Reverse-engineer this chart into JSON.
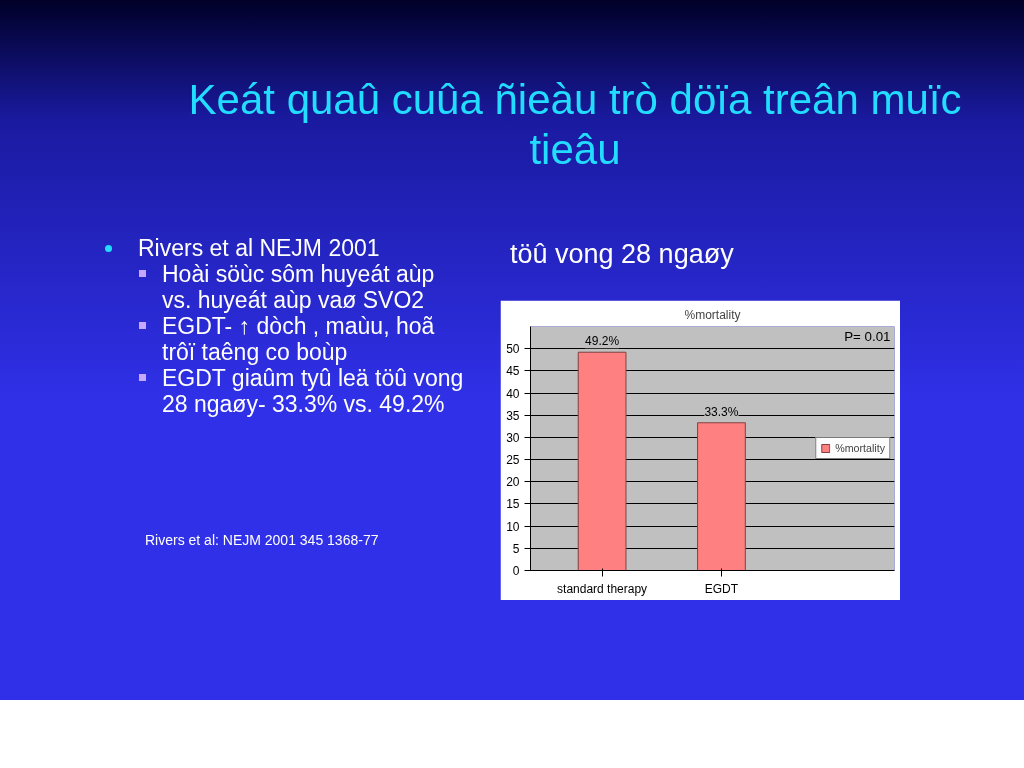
{
  "chart_data": {
    "type": "bar",
    "title": "%mortality",
    "subtitle": "töû vong 28 ngaøy",
    "annotations": [
      "Keát quaû cuûa ñieàu trò döïa treân muïc tieâu",
      "Rivers et al NEJM 2001",
      "Hoài söùc sôm huyeát aùp vs. huyeát aùp vaø SVO2",
      "EGDT- ↑ dòch , maùu, hoã trôï taêng co boùp",
      "EGDT giaûm tyû leä töû vong 28 ngaøy- 33.3% vs. 49.2%",
      "Rivers et al: NEJM 2001 345  1368-77",
      "P= 0.01"
    ],
    "categories": [
      "standard therapy",
      "EGDT"
    ],
    "series": [
      {
        "name": "%mortality",
        "color": "#ff8080",
        "values": [
          49.2,
          33.3
        ],
        "value_labels": [
          "49.2%",
          "33.3%"
        ]
      }
    ],
    "ylim": [
      0,
      55
    ],
    "yticks": [
      0,
      5,
      10,
      15,
      20,
      25,
      30,
      35,
      40,
      45,
      50
    ],
    "grid": "y",
    "legend": "right"
  }
}
